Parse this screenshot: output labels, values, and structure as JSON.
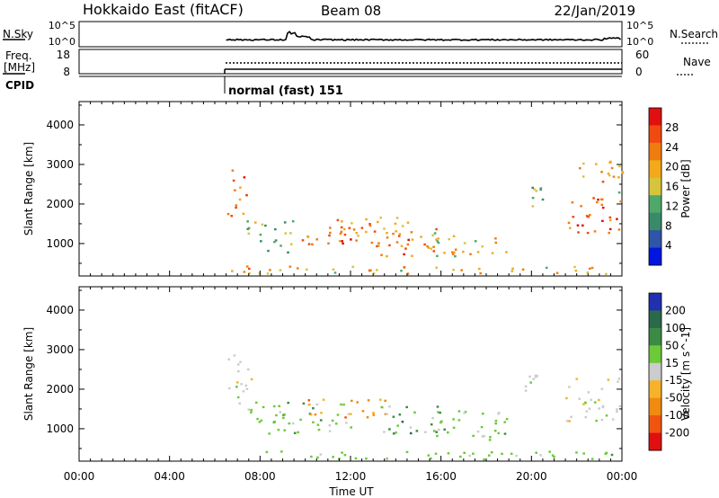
{
  "header": {
    "station": "Hokkaido East (fitACF)",
    "beam": "Beam 08",
    "date": "22/Jan/2019"
  },
  "top_panels": {
    "nsky": {
      "label": "N.Sky",
      "left_ticks": [
        "10^5",
        "10^0"
      ],
      "right_ticks": [
        "10^5",
        "10^0"
      ],
      "right_label": "N.Search"
    },
    "freq": {
      "label_line1": "Freq.",
      "label_line2": "[MHz]",
      "left_ticks": [
        "18",
        "8"
      ],
      "right_ticks": [
        "60",
        "0"
      ],
      "right_label": "Nave"
    },
    "cpid": {
      "label": "CPID",
      "mode_text": "normal (fast) 151"
    }
  },
  "chart_data": [
    {
      "type": "heatmap",
      "name": "power",
      "ylabel": "Slant Range [km]",
      "xlabel": "Time UT",
      "x_ticks": [
        "00:00",
        "04:00",
        "08:00",
        "12:00",
        "16:00",
        "20:00",
        "00:00"
      ],
      "xlim_hours": [
        0,
        24
      ],
      "y_ticks": [
        1000,
        2000,
        3000,
        4000
      ],
      "ylim_km": [
        180,
        4590
      ],
      "colorbar": {
        "label": "Power [dB]",
        "ticks": [
          4,
          8,
          12,
          16,
          20,
          24,
          28
        ],
        "range": [
          0,
          32
        ],
        "colors": [
          "#0016e0",
          "#2f55a8",
          "#3a8a6a",
          "#4ea86a",
          "#d6c43c",
          "#f2a91a",
          "#f07c10",
          "#f04a10",
          "#e01010"
        ]
      },
      "regions": [
        {
          "t": [
            6.5,
            7.4
          ],
          "r": [
            1600,
            2900
          ],
          "level": 24
        },
        {
          "t": [
            7.2,
            9.5
          ],
          "r": [
            800,
            1600
          ],
          "level": 12
        },
        {
          "t": [
            9.5,
            12.5
          ],
          "r": [
            900,
            1500
          ],
          "level": 26
        },
        {
          "t": [
            11.0,
            14.5
          ],
          "r": [
            1200,
            1750
          ],
          "level": 22
        },
        {
          "t": [
            12.5,
            16.5
          ],
          "r": [
            700,
            1400
          ],
          "level": 24
        },
        {
          "t": [
            15.5,
            19.0
          ],
          "r": [
            700,
            1300
          ],
          "level": 18
        },
        {
          "t": [
            6.5,
            24.0
          ],
          "r": [
            250,
            450
          ],
          "level": 20
        },
        {
          "t": [
            19.5,
            20.5
          ],
          "r": [
            1900,
            2600
          ],
          "level": 14
        },
        {
          "t": [
            21.5,
            24.0
          ],
          "r": [
            1200,
            2200
          ],
          "level": 26
        },
        {
          "t": [
            22.0,
            24.0
          ],
          "r": [
            2300,
            3100
          ],
          "level": 20
        }
      ]
    },
    {
      "type": "heatmap",
      "name": "velocity",
      "ylabel": "Slant Range [km]",
      "xlabel": "Time UT",
      "x_ticks": [
        "00:00",
        "04:00",
        "08:00",
        "12:00",
        "16:00",
        "20:00",
        "00:00"
      ],
      "xlim_hours": [
        0,
        24
      ],
      "y_ticks": [
        1000,
        2000,
        3000,
        4000
      ],
      "ylim_km": [
        180,
        4590
      ],
      "colorbar": {
        "label": "Velocity [m s^-1]",
        "ticks": [
          "200",
          "100",
          "50",
          "15",
          "-15",
          "-50",
          "-100",
          "-200"
        ],
        "colors": [
          "#2030b0",
          "#2a6a4a",
          "#3d8a45",
          "#6cc93a",
          "#cccccc",
          "#f6b22a",
          "#f08a10",
          "#f05510",
          "#e01010"
        ]
      },
      "regions": [
        {
          "t": [
            6.5,
            7.6
          ],
          "r": [
            1500,
            2900
          ],
          "cls": "ground"
        },
        {
          "t": [
            7.2,
            12.0
          ],
          "r": [
            900,
            1700
          ],
          "cls": "pos-small"
        },
        {
          "t": [
            10.0,
            13.5
          ],
          "r": [
            1300,
            1800
          ],
          "cls": "neg"
        },
        {
          "t": [
            13.0,
            16.0
          ],
          "r": [
            900,
            1600
          ],
          "cls": "mixed"
        },
        {
          "t": [
            15.5,
            19.0
          ],
          "r": [
            700,
            1500
          ],
          "cls": "pos-small"
        },
        {
          "t": [
            19.5,
            20.5
          ],
          "r": [
            1900,
            2600
          ],
          "cls": "ground"
        },
        {
          "t": [
            21.5,
            24.0
          ],
          "r": [
            1200,
            2300
          ],
          "cls": "ground"
        },
        {
          "t": [
            6.5,
            24.0
          ],
          "r": [
            250,
            450
          ],
          "cls": "pos-small"
        }
      ]
    }
  ]
}
